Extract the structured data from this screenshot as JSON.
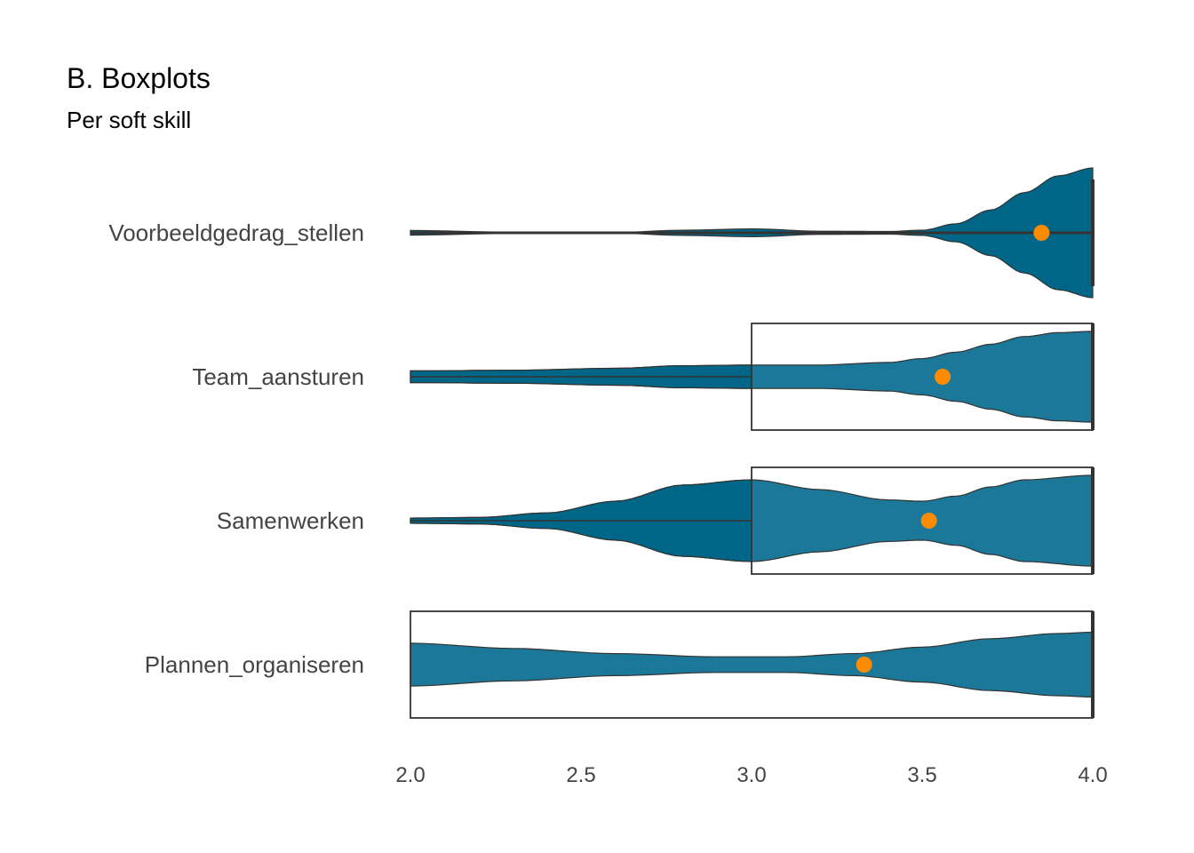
{
  "title": "B. Boxplots",
  "subtitle": "Per soft skill",
  "colors": {
    "violin_dark": "#006687",
    "violin_light": "#1b7898",
    "box_stroke": "#333333",
    "mean_point": "#ff8c00",
    "text": "#444444"
  },
  "chart_data": {
    "type": "violin",
    "title": "B. Boxplots",
    "subtitle": "Per soft skill",
    "xlabel": "",
    "ylabel": "",
    "xlim": [
      2.0,
      4.0
    ],
    "x_ticks": [
      2.0,
      2.5,
      3.0,
      3.5,
      4.0
    ],
    "x_tick_labels": [
      "2.0",
      "2.5",
      "3.0",
      "3.5",
      "4.0"
    ],
    "grid": false,
    "legend": "none",
    "categories": [
      "Voorbeeldgedrag_stellen",
      "Team_aansturen",
      "Samenwerken",
      "Plannen_organiseren"
    ],
    "series": [
      {
        "category": "Voorbeeldgedrag_stellen",
        "min": 2.0,
        "q1": 4.0,
        "median": 4.0,
        "q3": 4.0,
        "max": 4.0,
        "mean": 3.85,
        "density": [
          [
            2.0,
            0.035
          ],
          [
            2.3,
            0.01
          ],
          [
            2.6,
            0.005
          ],
          [
            2.8,
            0.04
          ],
          [
            3.0,
            0.06
          ],
          [
            3.2,
            0.025
          ],
          [
            3.4,
            0.02
          ],
          [
            3.5,
            0.04
          ],
          [
            3.6,
            0.14
          ],
          [
            3.7,
            0.35
          ],
          [
            3.8,
            0.62
          ],
          [
            3.9,
            0.88
          ],
          [
            4.0,
            1.0
          ]
        ]
      },
      {
        "category": "Team_aansturen",
        "min": 2.0,
        "q1": 3.0,
        "median": 4.0,
        "q3": 4.0,
        "max": 4.0,
        "mean": 3.56,
        "density": [
          [
            2.0,
            0.09
          ],
          [
            2.3,
            0.1
          ],
          [
            2.6,
            0.13
          ],
          [
            2.8,
            0.17
          ],
          [
            3.0,
            0.18
          ],
          [
            3.2,
            0.18
          ],
          [
            3.4,
            0.22
          ],
          [
            3.5,
            0.28
          ],
          [
            3.6,
            0.38
          ],
          [
            3.7,
            0.5
          ],
          [
            3.8,
            0.62
          ],
          [
            3.9,
            0.68
          ],
          [
            4.0,
            0.7
          ]
        ]
      },
      {
        "category": "Samenwerken",
        "min": 2.0,
        "q1": 3.0,
        "median": 4.0,
        "q3": 4.0,
        "max": 4.0,
        "mean": 3.52,
        "density": [
          [
            2.0,
            0.04
          ],
          [
            2.2,
            0.05
          ],
          [
            2.4,
            0.12
          ],
          [
            2.6,
            0.3
          ],
          [
            2.8,
            0.55
          ],
          [
            3.0,
            0.63
          ],
          [
            3.2,
            0.48
          ],
          [
            3.4,
            0.32
          ],
          [
            3.5,
            0.3
          ],
          [
            3.6,
            0.38
          ],
          [
            3.7,
            0.52
          ],
          [
            3.8,
            0.63
          ],
          [
            4.0,
            0.7
          ]
        ]
      },
      {
        "category": "Plannen_organiseren",
        "min": 2.0,
        "q1": 2.0,
        "median": 4.0,
        "q3": 4.0,
        "max": 4.0,
        "mean": 3.33,
        "density": [
          [
            2.0,
            0.33
          ],
          [
            2.3,
            0.25
          ],
          [
            2.6,
            0.17
          ],
          [
            2.9,
            0.12
          ],
          [
            3.1,
            0.12
          ],
          [
            3.3,
            0.17
          ],
          [
            3.5,
            0.27
          ],
          [
            3.7,
            0.4
          ],
          [
            3.9,
            0.48
          ],
          [
            4.0,
            0.5
          ]
        ]
      }
    ]
  }
}
